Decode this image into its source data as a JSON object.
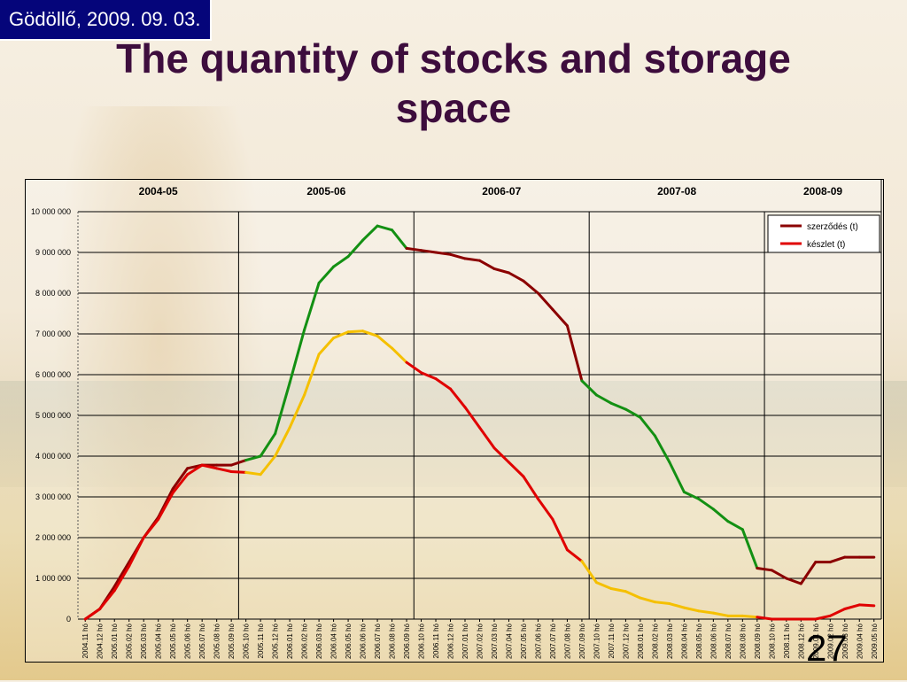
{
  "header": {
    "date": "Gödöllő, 2009. 09. 03."
  },
  "title": "The quantity of stocks and storage space",
  "page_number": "27",
  "chart_data": {
    "type": "line",
    "seasons": [
      "2004-05",
      "2005-06",
      "2006-07",
      "2007-08",
      "2008-09"
    ],
    "ylim": [
      0,
      10000000
    ],
    "yticks": [
      0,
      1000000,
      2000000,
      3000000,
      4000000,
      5000000,
      6000000,
      7000000,
      8000000,
      9000000,
      10000000
    ],
    "ytick_labels": [
      "0",
      "1 000 000",
      "2 000 000",
      "3 000 000",
      "4 000 000",
      "5 000 000",
      "6 000 000",
      "7 000 000",
      "8 000 000",
      "9 000 000",
      "10 000 000"
    ],
    "categories": [
      "2004.11 hó",
      "2004.12 hó",
      "2005.01 hó",
      "2005.02 hó",
      "2005.03 hó",
      "2005.04 hó",
      "2005.05 hó",
      "2005.06 hó",
      "2005.07 hó",
      "2005.08 hó",
      "2005.09 hó",
      "2005.10 hó",
      "2005.11 hó",
      "2005.12 hó",
      "2006.01 hó",
      "2006.02 hó",
      "2006.03 hó",
      "2006.04 hó",
      "2006.05 hó",
      "2006.06 hó",
      "2006.07 hó",
      "2006.08 hó",
      "2006.09 hó",
      "2006.10 hó",
      "2006.11 hó",
      "2006.12 hó",
      "2007.01 hó",
      "2007.02 hó",
      "2007.03 hó",
      "2007.04 hó",
      "2007.05 hó",
      "2007.06 hó",
      "2007.07 hó",
      "2007.08 hó",
      "2007.09 hó",
      "2007.10 hó",
      "2007.11 hó",
      "2007.12 hó",
      "2008.01 hó",
      "2008.02 hó",
      "2008.03 hó",
      "2008.04 hó",
      "2008.05 hó",
      "2008.06 hó",
      "2008.07 hó",
      "2008.08 hó",
      "2008.09 hó",
      "2008.10 hó",
      "2008.11 hó",
      "2008.12 hó",
      "2009.01 hó",
      "2009.02 hó",
      "2009.03 hó",
      "2009.04 hó",
      "2009.05 hó"
    ],
    "season_boundaries_after_index": [
      10,
      22,
      34,
      46
    ],
    "legend_position": "top-right",
    "series": [
      {
        "name": "szerződés (t)",
        "color": "#8b0000",
        "values": [
          0,
          250000,
          800000,
          1400000,
          2000000,
          2500000,
          3200000,
          3700000,
          3780000,
          3780000,
          3780000,
          3900000,
          4000000,
          4550000,
          5800000,
          7100000,
          8250000,
          8650000,
          8900000,
          9300000,
          9650000,
          9550000,
          9100000,
          9050000,
          9000000,
          8950000,
          8850000,
          8800000,
          8600000,
          8500000,
          8300000,
          8000000,
          7600000,
          7200000,
          5850000,
          5500000,
          5300000,
          5150000,
          4950000,
          4500000,
          3850000,
          3120000,
          2950000,
          2700000,
          2400000,
          2200000,
          1250000,
          1200000,
          1000000,
          870000,
          1400000,
          1400000,
          1520000,
          1520000,
          1520000
        ],
        "segment_colors": [
          "#8b0000",
          "#8b0000",
          "#8b0000",
          "#8b0000",
          "#8b0000",
          "#8b0000",
          "#8b0000",
          "#8b0000",
          "#8b0000",
          "#8b0000",
          "#8b0000",
          "#139013",
          "#139013",
          "#139013",
          "#139013",
          "#139013",
          "#139013",
          "#139013",
          "#139013",
          "#139013",
          "#139013",
          "#139013",
          "#8b0000",
          "#8b0000",
          "#8b0000",
          "#8b0000",
          "#8b0000",
          "#8b0000",
          "#8b0000",
          "#8b0000",
          "#8b0000",
          "#8b0000",
          "#8b0000",
          "#8b0000",
          "#139013",
          "#139013",
          "#139013",
          "#139013",
          "#139013",
          "#139013",
          "#139013",
          "#139013",
          "#139013",
          "#139013",
          "#139013",
          "#139013",
          "#8b0000",
          "#8b0000",
          "#8b0000",
          "#8b0000",
          "#8b0000",
          "#8b0000",
          "#8b0000",
          "#8b0000"
        ]
      },
      {
        "name": "készlet (t)",
        "color": "#e00000",
        "values": [
          0,
          250000,
          700000,
          1300000,
          2000000,
          2450000,
          3100000,
          3550000,
          3780000,
          3700000,
          3620000,
          3600000,
          3550000,
          4000000,
          4700000,
          5500000,
          6500000,
          6900000,
          7050000,
          7070000,
          6950000,
          6650000,
          6300000,
          6050000,
          5900000,
          5650000,
          5200000,
          4700000,
          4200000,
          3850000,
          3500000,
          2950000,
          2450000,
          1700000,
          1420000,
          900000,
          750000,
          680000,
          520000,
          420000,
          380000,
          280000,
          200000,
          150000,
          80000,
          80000,
          50000,
          0,
          0,
          0,
          0,
          80000,
          250000,
          350000,
          330000
        ],
        "segment_colors": [
          "#e00000",
          "#e00000",
          "#e00000",
          "#e00000",
          "#e00000",
          "#e00000",
          "#e00000",
          "#e00000",
          "#e00000",
          "#e00000",
          "#e00000",
          "#f5c000",
          "#f5c000",
          "#f5c000",
          "#f5c000",
          "#f5c000",
          "#f5c000",
          "#f5c000",
          "#f5c000",
          "#f5c000",
          "#f5c000",
          "#f5c000",
          "#e00000",
          "#e00000",
          "#e00000",
          "#e00000",
          "#e00000",
          "#e00000",
          "#e00000",
          "#e00000",
          "#e00000",
          "#e00000",
          "#e00000",
          "#e00000",
          "#f5c000",
          "#f5c000",
          "#f5c000",
          "#f5c000",
          "#f5c000",
          "#f5c000",
          "#f5c000",
          "#f5c000",
          "#f5c000",
          "#f5c000",
          "#f5c000",
          "#f5c000",
          "#e00000",
          "#e00000",
          "#e00000",
          "#e00000",
          "#e00000",
          "#e00000",
          "#e00000",
          "#e00000"
        ]
      }
    ]
  }
}
